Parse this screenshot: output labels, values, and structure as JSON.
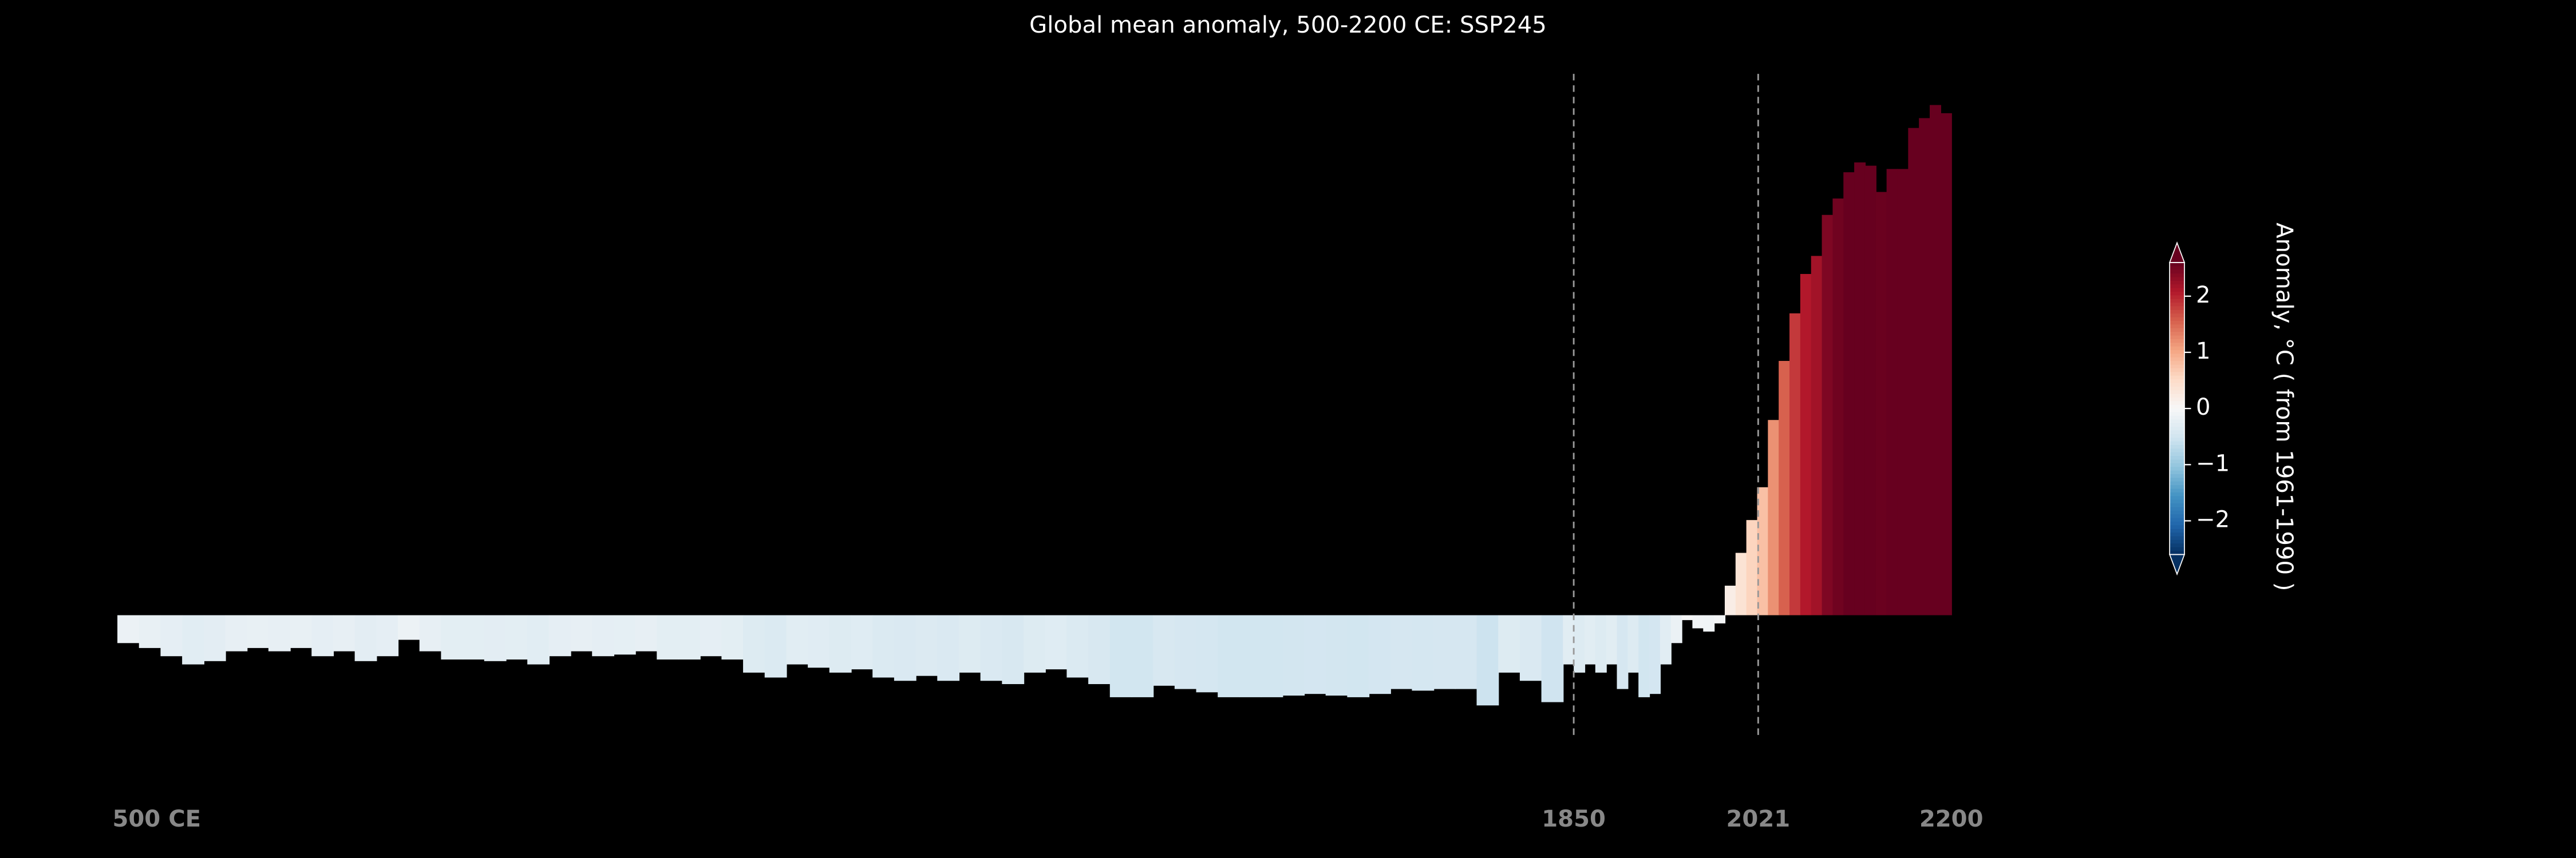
{
  "chart_data": {
    "type": "bar",
    "title": "Global mean anomaly, 500-2200 CE: SSP245",
    "x": [
      500,
      520,
      540,
      560,
      580,
      600,
      620,
      640,
      660,
      680,
      700,
      720,
      740,
      760,
      780,
      800,
      820,
      840,
      860,
      880,
      900,
      920,
      940,
      960,
      980,
      1000,
      1020,
      1040,
      1060,
      1080,
      1100,
      1120,
      1140,
      1160,
      1180,
      1200,
      1220,
      1240,
      1260,
      1280,
      1300,
      1320,
      1340,
      1360,
      1380,
      1400,
      1420,
      1440,
      1460,
      1480,
      1500,
      1520,
      1540,
      1560,
      1580,
      1600,
      1620,
      1640,
      1660,
      1680,
      1700,
      1720,
      1740,
      1760,
      1780,
      1800,
      1820,
      1840,
      1850,
      1860,
      1870,
      1880,
      1890,
      1900,
      1910,
      1920,
      1930,
      1940,
      1950,
      1960,
      1970,
      1980,
      1990,
      2000,
      2010,
      2020,
      2030,
      2040,
      2050,
      2060,
      2070,
      2080,
      2090,
      2100,
      2110,
      2120,
      2130,
      2140,
      2150,
      2160,
      2170,
      2180,
      2190
    ],
    "values": [
      -0.17,
      -0.2,
      -0.25,
      -0.3,
      -0.28,
      -0.22,
      -0.2,
      -0.22,
      -0.2,
      -0.25,
      -0.22,
      -0.28,
      -0.25,
      -0.15,
      -0.22,
      -0.27,
      -0.27,
      -0.28,
      -0.27,
      -0.3,
      -0.25,
      -0.22,
      -0.25,
      -0.24,
      -0.22,
      -0.27,
      -0.27,
      -0.25,
      -0.27,
      -0.35,
      -0.38,
      -0.3,
      -0.32,
      -0.35,
      -0.33,
      -0.38,
      -0.4,
      -0.37,
      -0.4,
      -0.35,
      -0.4,
      -0.42,
      -0.35,
      -0.33,
      -0.38,
      -0.42,
      -0.5,
      -0.5,
      -0.43,
      -0.45,
      -0.47,
      -0.5,
      -0.5,
      -0.5,
      -0.49,
      -0.48,
      -0.49,
      -0.5,
      -0.48,
      -0.45,
      -0.46,
      -0.45,
      -0.45,
      -0.55,
      -0.35,
      -0.4,
      -0.53,
      -0.3,
      -0.35,
      -0.3,
      -0.35,
      -0.3,
      -0.45,
      -0.35,
      -0.5,
      -0.48,
      -0.3,
      -0.17,
      -0.03,
      -0.08,
      -0.1,
      -0.05,
      0.18,
      0.38,
      0.58,
      0.78,
      1.19,
      1.55,
      1.84,
      2.08,
      2.19,
      2.44,
      2.54,
      2.7,
      2.76,
      2.74,
      2.58,
      2.72,
      2.72,
      2.97,
      3.03,
      3.11,
      3.06
    ],
    "xlim": [
      500,
      2200
    ],
    "xticks": [
      {
        "value": 500,
        "label": "500 CE"
      },
      1850,
      2021,
      2200
    ],
    "vlines": [
      1850,
      2021
    ],
    "ylim": [
      -0.73,
      3.3
    ],
    "colormap": "RdBu_r",
    "colorbar": {
      "label": "Anomaly, °C ( from 1961-1990 )",
      "lim": [
        -2.6,
        2.6
      ],
      "ticks": [
        {
          "value": -2,
          "label": "−2"
        },
        {
          "value": -1,
          "label": "−1"
        },
        0,
        1,
        2
      ]
    }
  }
}
